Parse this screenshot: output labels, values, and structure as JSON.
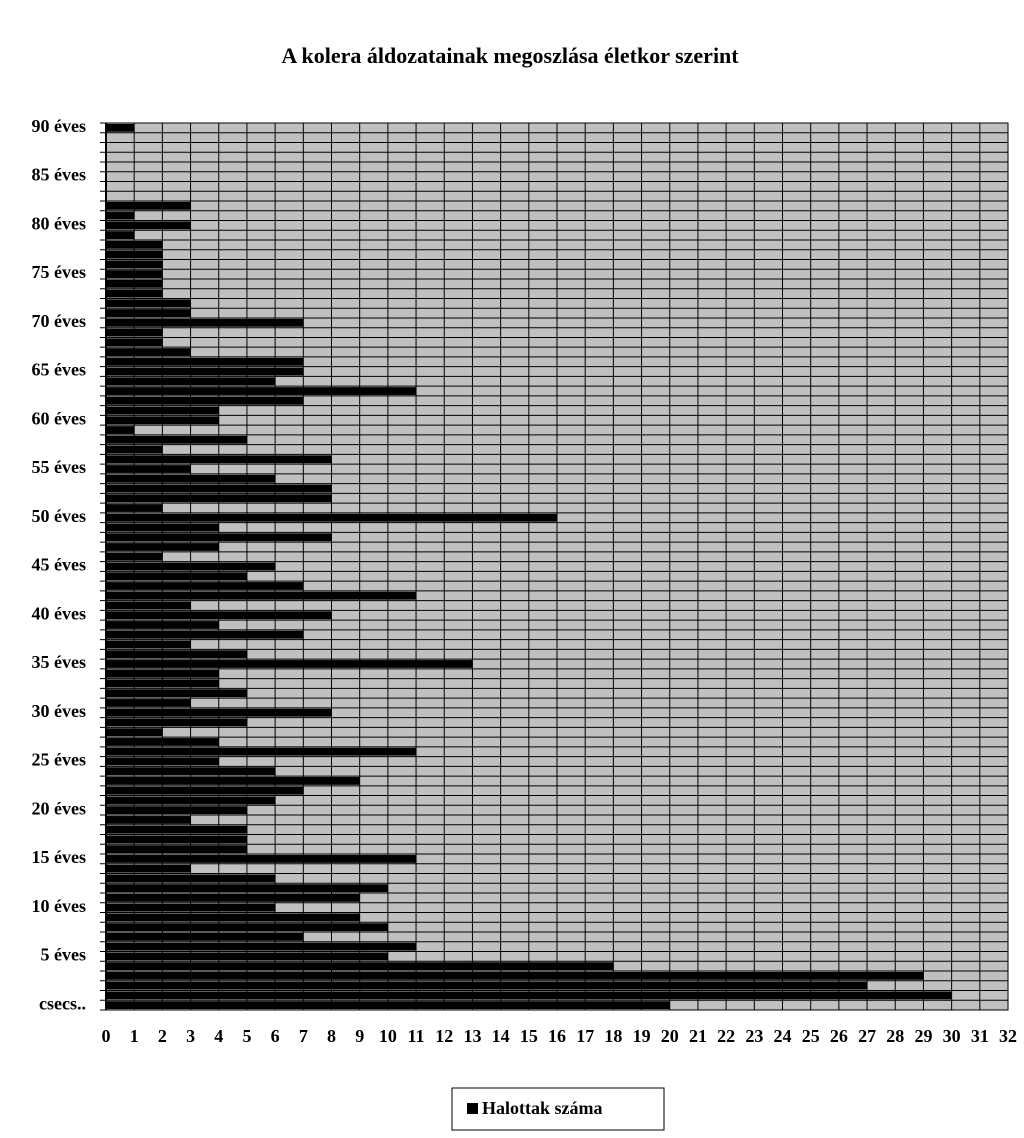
{
  "chart_data": {
    "type": "bar",
    "orientation": "horizontal",
    "title": "A kolera áldozatainak  megoszlása életkor szerint",
    "categories": [
      "csecs..",
      null,
      null,
      null,
      null,
      "5 éves",
      null,
      null,
      null,
      null,
      "10 éves",
      null,
      null,
      null,
      null,
      "15 éves",
      null,
      null,
      null,
      null,
      "20 éves",
      null,
      null,
      null,
      null,
      "25 éves",
      null,
      null,
      null,
      null,
      "30 éves",
      null,
      null,
      null,
      null,
      "35 éves",
      null,
      null,
      null,
      null,
      "40 éves",
      null,
      null,
      null,
      null,
      "45 éves",
      null,
      null,
      null,
      null,
      "50 éves",
      null,
      null,
      null,
      null,
      "55 éves",
      null,
      null,
      null,
      null,
      "60 éves",
      null,
      null,
      null,
      null,
      "65 éves",
      null,
      null,
      null,
      null,
      "70 éves",
      null,
      null,
      null,
      null,
      "75 éves",
      null,
      null,
      null,
      null,
      "80 éves",
      null,
      null,
      null,
      null,
      "85 éves",
      null,
      null,
      null,
      null,
      "90 éves"
    ],
    "series": [
      {
        "name": "Halottak száma",
        "color": "#000000",
        "values": [
          20,
          30,
          27,
          29,
          18,
          10,
          11,
          7,
          10,
          9,
          6,
          9,
          10,
          6,
          3,
          11,
          5,
          5,
          5,
          3,
          5,
          6,
          7,
          9,
          6,
          4,
          11,
          4,
          2,
          5,
          8,
          3,
          5,
          4,
          4,
          13,
          5,
          3,
          7,
          4,
          8,
          3,
          11,
          7,
          5,
          6,
          2,
          4,
          8,
          4,
          16,
          2,
          8,
          8,
          6,
          3,
          8,
          2,
          5,
          1,
          4,
          4,
          7,
          11,
          6,
          7,
          7,
          3,
          2,
          2,
          7,
          3,
          3,
          2,
          2,
          2,
          2,
          2,
          2,
          1,
          3,
          1,
          3,
          0,
          0,
          0,
          0,
          0,
          0,
          0,
          1
        ]
      }
    ],
    "xlim": [
      0,
      32
    ],
    "xticks": [
      0,
      1,
      2,
      3,
      4,
      5,
      6,
      7,
      8,
      9,
      10,
      11,
      12,
      13,
      14,
      15,
      16,
      17,
      18,
      19,
      20,
      21,
      22,
      23,
      24,
      25,
      26,
      27,
      28,
      29,
      30,
      31,
      32
    ],
    "grid": true,
    "background": "#c0c0c0",
    "legend": "bottom"
  }
}
